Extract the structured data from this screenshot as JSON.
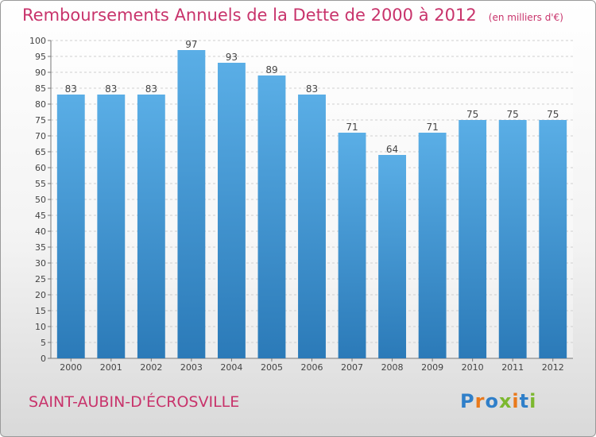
{
  "header": {
    "title": "Remboursements Annuels de la Dette de 2000 à 2012",
    "unit": "(en milliers d'€)"
  },
  "footer": {
    "city": "SAINT-AUBIN-D'ÉCROSVILLE",
    "logo": {
      "text": "Proxiti",
      "letter_colors": [
        "#2f7fc9",
        "#e9791b",
        "#2f7fc9",
        "#7cb82f",
        "#e9791b",
        "#2f7fc9",
        "#7cb82f"
      ]
    }
  },
  "colors": {
    "title": "#c8336b",
    "bar_top": "#5aaee6",
    "bar_bottom": "#2b7ab8",
    "grid": "#cfcfcf",
    "axis": "#777777",
    "label": "#444444"
  },
  "chart_data": {
    "type": "bar",
    "title": "Remboursements Annuels de la Dette de 2000 à 2012",
    "subtitle": "(en milliers d'€)",
    "categories": [
      "2000",
      "2001",
      "2002",
      "2003",
      "2004",
      "2005",
      "2006",
      "2007",
      "2008",
      "2009",
      "2010",
      "2011",
      "2012"
    ],
    "values": [
      83,
      83,
      83,
      97,
      93,
      89,
      83,
      71,
      64,
      71,
      75,
      75,
      75
    ],
    "ylim": [
      0,
      100
    ],
    "ytick_step": 5,
    "grid": true,
    "data_labels": true
  }
}
